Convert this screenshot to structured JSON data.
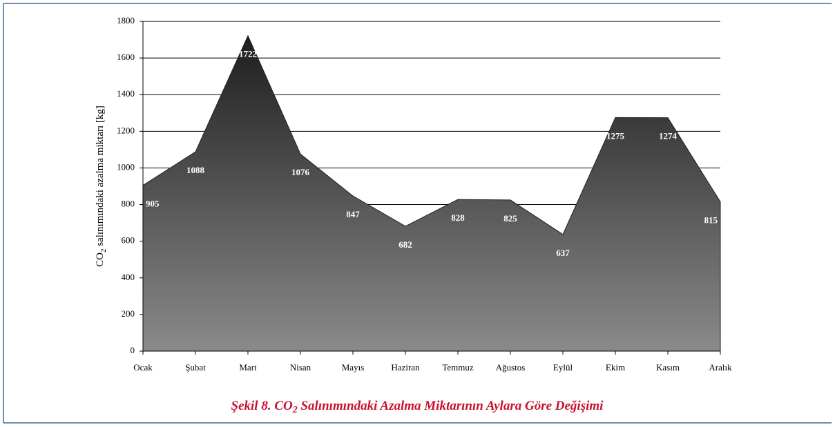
{
  "chart_data": {
    "type": "area",
    "y_label": {
      "main": "CO",
      "sub": "2",
      "rest": " salınımındaki azalma miktarı [kg]"
    },
    "caption": {
      "main": "Şekil 8. CO",
      "sub": "2",
      "rest": " Salınımındaki Azalma Miktarının Aylara Göre Değişimi"
    },
    "categories": [
      "Ocak",
      "Şubat",
      "Mart",
      "Nisan",
      "Mayıs",
      "Haziran",
      "Temmuz",
      "Ağustos",
      "Eylül",
      "Ekim",
      "Kasım",
      "Aralık"
    ],
    "values": [
      905,
      1088,
      1722,
      1076,
      847,
      682,
      828,
      825,
      637,
      1275,
      1274,
      815
    ],
    "ylim": [
      0,
      1800
    ],
    "yticks": [
      0,
      200,
      400,
      600,
      800,
      1000,
      1200,
      1400,
      1600,
      1800
    ],
    "grid": true,
    "color_top": "#1e1e1e",
    "color_bottom": "#8a8a8a"
  }
}
